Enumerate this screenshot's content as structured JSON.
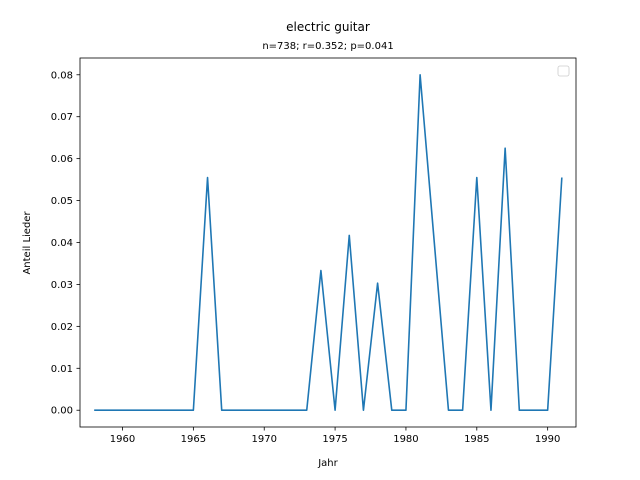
{
  "chart_data": {
    "type": "line",
    "title": "electric guitar",
    "subtitle": "n=738; r=0.352; p=0.041",
    "xlabel": "Jahr",
    "ylabel": "Anteil Lieder",
    "xlim": [
      1957,
      1992
    ],
    "ylim": [
      -0.004,
      0.084
    ],
    "x_ticks": [
      1960,
      1965,
      1970,
      1975,
      1980,
      1985,
      1990
    ],
    "y_ticks": [
      0.0,
      0.01,
      0.02,
      0.03,
      0.04,
      0.05,
      0.06,
      0.07,
      0.08
    ],
    "y_tick_labels": [
      "0.00",
      "0.01",
      "0.02",
      "0.03",
      "0.04",
      "0.05",
      "0.06",
      "0.07",
      "0.08"
    ],
    "legend": {
      "placement": "top-right",
      "entries": []
    },
    "grid": false,
    "color": "#1f77b4",
    "x": [
      1958,
      1959,
      1960,
      1961,
      1962,
      1963,
      1964,
      1965,
      1966,
      1967,
      1968,
      1969,
      1970,
      1971,
      1972,
      1973,
      1974,
      1975,
      1976,
      1977,
      1978,
      1979,
      1980,
      1981,
      1982,
      1983,
      1984,
      1985,
      1986,
      1987,
      1988,
      1989,
      1990,
      1991
    ],
    "y": [
      0,
      0,
      0,
      0,
      0,
      0,
      0,
      0,
      0.0555,
      0,
      0,
      0,
      0,
      0,
      0,
      0,
      0.0333,
      0,
      0.0417,
      0,
      0.0303,
      0,
      0,
      0.08,
      0.04,
      0,
      0,
      0.0555,
      0,
      0.0625,
      0,
      0,
      0,
      0.0555
    ]
  }
}
